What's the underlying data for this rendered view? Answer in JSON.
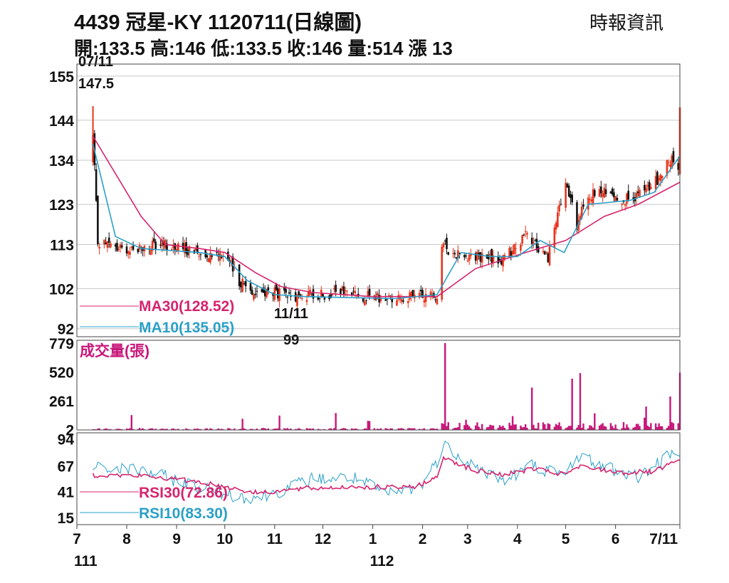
{
  "header": {
    "title": "4439  冠星-KY 1120711(日線圖)",
    "source": "時報資訊",
    "ohlc": "開:133.5 高:146 低:133.5 收:146 量:514 漲 13"
  },
  "colors": {
    "up": "#e8341c",
    "down": "#111111",
    "ma30": "#d6246e",
    "ma10": "#2aa0c8",
    "volume": "#c8177a",
    "rsi30": "#d6246e",
    "rsi10": "#2aa0c8"
  },
  "chart_data": [
    {
      "type": "candlestick",
      "panel": "price",
      "ylim": [
        90,
        158
      ],
      "yticks": [
        155,
        144,
        134,
        123,
        113,
        102,
        92
      ],
      "grid": true,
      "x_ticks": [
        "7",
        "8",
        "9",
        "10",
        "11",
        "12",
        "1",
        "2",
        "3",
        "4",
        "5",
        "6",
        "7/11"
      ],
      "x_tick_year": [
        "111",
        "112"
      ],
      "x_tick_dates": [
        "2022-07-01",
        "2022-08-01",
        "2022-09-01",
        "2022-10-01",
        "2022-11-01",
        "2022-12-01",
        "2023-01-01",
        "2023-02-01",
        "2023-03-01",
        "2023-04-01",
        "2023-05-01",
        "2023-06-01",
        "2023-07-11"
      ],
      "close_anchors": [
        [
          "2022-07-11",
          140
        ],
        [
          "2022-07-14",
          114
        ],
        [
          "2022-07-25",
          112
        ],
        [
          "2022-08-10",
          112
        ],
        [
          "2022-08-25",
          113
        ],
        [
          "2022-09-15",
          111
        ],
        [
          "2022-09-30",
          111
        ],
        [
          "2022-10-10",
          104
        ],
        [
          "2022-10-20",
          101
        ],
        [
          "2022-11-01",
          101
        ],
        [
          "2022-11-11",
          99.5
        ],
        [
          "2022-11-25",
          100.5
        ],
        [
          "2022-12-15",
          101
        ],
        [
          "2023-01-05",
          99.5
        ],
        [
          "2023-01-30",
          100
        ],
        [
          "2023-02-10",
          100.5
        ],
        [
          "2023-02-13",
          113
        ],
        [
          "2023-02-20",
          111
        ],
        [
          "2023-03-06",
          110
        ],
        [
          "2023-03-22",
          109
        ],
        [
          "2023-04-06",
          115
        ],
        [
          "2023-04-20",
          110
        ],
        [
          "2023-05-01",
          128
        ],
        [
          "2023-05-08",
          118
        ],
        [
          "2023-05-15",
          125
        ],
        [
          "2023-05-25",
          126
        ],
        [
          "2023-06-10",
          124
        ],
        [
          "2023-06-25",
          128
        ],
        [
          "2023-07-05",
          134
        ],
        [
          "2023-07-10",
          133
        ],
        [
          "2023-07-11",
          146
        ]
      ],
      "ma30": [
        [
          "2022-07-11",
          140
        ],
        [
          "2022-08-10",
          120
        ],
        [
          "2022-08-25",
          113
        ],
        [
          "2022-09-15",
          112
        ],
        [
          "2022-10-01",
          111
        ],
        [
          "2022-10-20",
          106
        ],
        [
          "2022-11-05",
          102.5
        ],
        [
          "2022-11-25",
          101
        ],
        [
          "2023-01-01",
          100
        ],
        [
          "2023-02-10",
          100
        ],
        [
          "2023-03-06",
          107
        ],
        [
          "2023-04-06",
          111
        ],
        [
          "2023-05-01",
          114
        ],
        [
          "2023-05-25",
          120
        ],
        [
          "2023-06-15",
          123
        ],
        [
          "2023-07-11",
          128.52
        ]
      ],
      "ma10": [
        [
          "2022-07-11",
          138
        ],
        [
          "2022-07-25",
          115
        ],
        [
          "2022-08-10",
          112
        ],
        [
          "2022-09-15",
          111
        ],
        [
          "2022-10-01",
          110
        ],
        [
          "2022-10-15",
          104
        ],
        [
          "2022-11-01",
          100.5
        ],
        [
          "2022-11-20",
          100
        ],
        [
          "2023-01-15",
          99.5
        ],
        [
          "2023-02-10",
          100.5
        ],
        [
          "2023-02-25",
          111
        ],
        [
          "2023-03-15",
          110
        ],
        [
          "2023-04-01",
          110
        ],
        [
          "2023-04-15",
          114
        ],
        [
          "2023-04-30",
          111
        ],
        [
          "2023-05-15",
          123
        ],
        [
          "2023-06-10",
          124
        ],
        [
          "2023-06-25",
          126
        ],
        [
          "2023-07-11",
          135.05
        ]
      ],
      "annotations": [
        {
          "date": "2022-07-11",
          "label": "07/11",
          "value_label": "147.5",
          "value": 147.5
        },
        {
          "date": "2022-11-11",
          "label": "11/11",
          "value_label": "99",
          "value": 99
        }
      ],
      "legend": [
        {
          "label": "MA30(128.52)",
          "series": "ma30"
        },
        {
          "label": "MA10(135.05)",
          "series": "ma10"
        }
      ]
    },
    {
      "type": "bar",
      "panel": "volume",
      "title": "成交量(張)",
      "ylim": [
        0,
        779
      ],
      "yticks": [
        779,
        520,
        261,
        2
      ],
      "spikes": [
        [
          "2023-02-15",
          779
        ],
        [
          "2023-04-10",
          380
        ],
        [
          "2023-05-05",
          460
        ],
        [
          "2023-05-10",
          510
        ],
        [
          "2023-06-20",
          210
        ],
        [
          "2023-07-05",
          300
        ],
        [
          "2023-07-11",
          514
        ]
      ]
    },
    {
      "type": "line",
      "panel": "rsi",
      "ylim": [
        8,
        100
      ],
      "yticks": [
        94,
        67,
        41,
        15
      ],
      "rsi30": [
        [
          "2022-07-01",
          58
        ],
        [
          "2022-08-10",
          57
        ],
        [
          "2022-09-15",
          51
        ],
        [
          "2022-10-20",
          40
        ],
        [
          "2022-11-20",
          44
        ],
        [
          "2022-12-20",
          46
        ],
        [
          "2023-01-25",
          45
        ],
        [
          "2023-02-10",
          55
        ],
        [
          "2023-02-14",
          76
        ],
        [
          "2023-03-05",
          62
        ],
        [
          "2023-03-25",
          58
        ],
        [
          "2023-04-10",
          64
        ],
        [
          "2023-04-30",
          58
        ],
        [
          "2023-05-10",
          66
        ],
        [
          "2023-06-05",
          60
        ],
        [
          "2023-06-25",
          61
        ],
        [
          "2023-07-11",
          72.86
        ]
      ],
      "rsi10": [
        [
          "2022-07-01",
          65
        ],
        [
          "2022-08-10",
          63
        ],
        [
          "2022-09-10",
          48
        ],
        [
          "2022-10-10",
          36
        ],
        [
          "2022-10-25",
          36
        ],
        [
          "2022-11-25",
          54
        ],
        [
          "2022-12-20",
          55
        ],
        [
          "2023-01-10",
          38
        ],
        [
          "2023-01-30",
          45
        ],
        [
          "2023-02-10",
          72
        ],
        [
          "2023-02-14",
          88
        ],
        [
          "2023-03-10",
          62
        ],
        [
          "2023-03-25",
          52
        ],
        [
          "2023-04-10",
          68
        ],
        [
          "2023-04-30",
          56
        ],
        [
          "2023-05-08",
          78
        ],
        [
          "2023-05-25",
          66
        ],
        [
          "2023-06-15",
          56
        ],
        [
          "2023-07-11",
          83.3
        ]
      ],
      "legend": [
        {
          "label": "RSI30(72.86)",
          "series": "rsi30"
        },
        {
          "label": "RSI10(83.30)",
          "series": "rsi10"
        }
      ]
    }
  ]
}
